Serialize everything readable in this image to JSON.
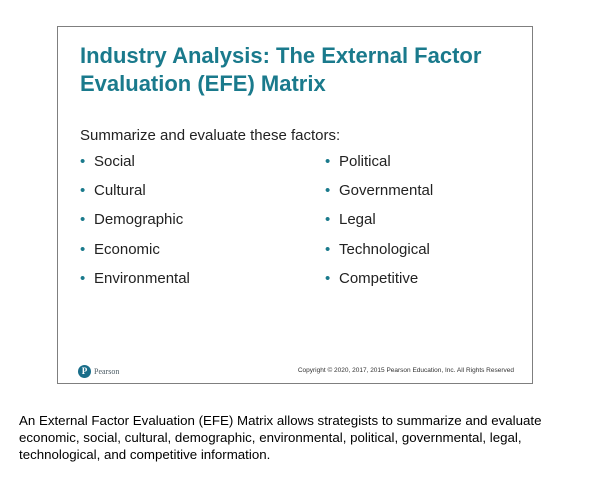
{
  "slide": {
    "title": "Industry Analysis: The External Factor Evaluation (EFE) Matrix",
    "intro": "Summarize and evaluate these factors:",
    "bullet_glyph": "•",
    "accent_color": "#1a7a8c",
    "left_items": [
      "Social",
      "Cultural",
      "Demographic",
      "Economic",
      "Environmental"
    ],
    "right_items": [
      "Political",
      "Governmental",
      "Legal",
      "Technological",
      "Competitive"
    ],
    "logo_mark": "P",
    "logo_text": "Pearson",
    "copyright": "Copyright © 2020, 2017, 2015 Pearson Education, Inc. All Rights Reserved"
  },
  "caption": "An External Factor Evaluation (EFE) Matrix allows strategists to summarize and evaluate economic, social, cultural, demographic, environmental, political, governmental, legal, technological, and competitive information."
}
